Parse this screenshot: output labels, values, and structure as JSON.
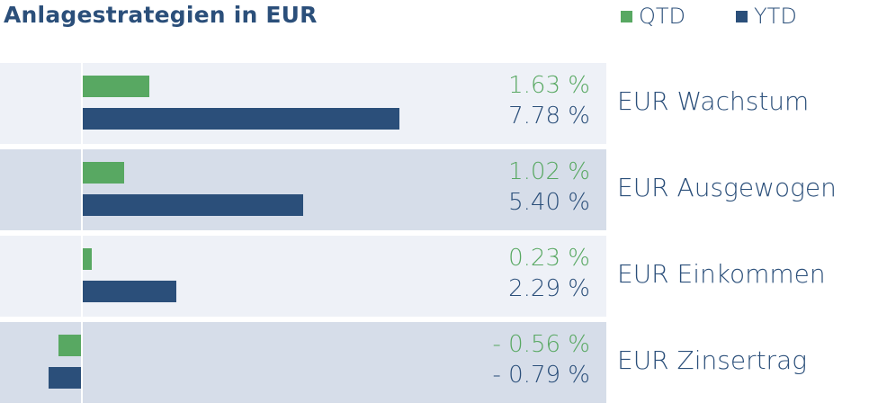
{
  "title": "Anlagestrategien in EUR",
  "legend": {
    "qtd": "QTD",
    "ytd": "YTD"
  },
  "colors": {
    "qtd": "#58a862",
    "ytd": "#2b4f7a",
    "row_light": "#eef1f7",
    "row_dark": "#d6dde9"
  },
  "rows": [
    {
      "label": "EUR Wachstum",
      "qtd_text": "1.63 %",
      "ytd_text": "7.78 %"
    },
    {
      "label": "EUR Ausgewogen",
      "qtd_text": "1.02 %",
      "ytd_text": "5.40 %"
    },
    {
      "label": "EUR Einkommen",
      "qtd_text": "0.23 %",
      "ytd_text": "2.29 %"
    },
    {
      "label": "EUR Zinsertrag",
      "qtd_text": "- 0.56 %",
      "ytd_text": "- 0.79 %"
    }
  ],
  "chart_data": {
    "type": "bar",
    "title": "Anlagestrategien in EUR",
    "categories": [
      "EUR Wachstum",
      "EUR Ausgewogen",
      "EUR Einkommen",
      "EUR Zinsertrag"
    ],
    "series": [
      {
        "name": "QTD",
        "values": [
          1.63,
          1.02,
          0.23,
          -0.56
        ]
      },
      {
        "name": "YTD",
        "values": [
          7.78,
          5.4,
          2.29,
          -0.79
        ]
      }
    ],
    "unit": "%",
    "legend": "top-right"
  }
}
